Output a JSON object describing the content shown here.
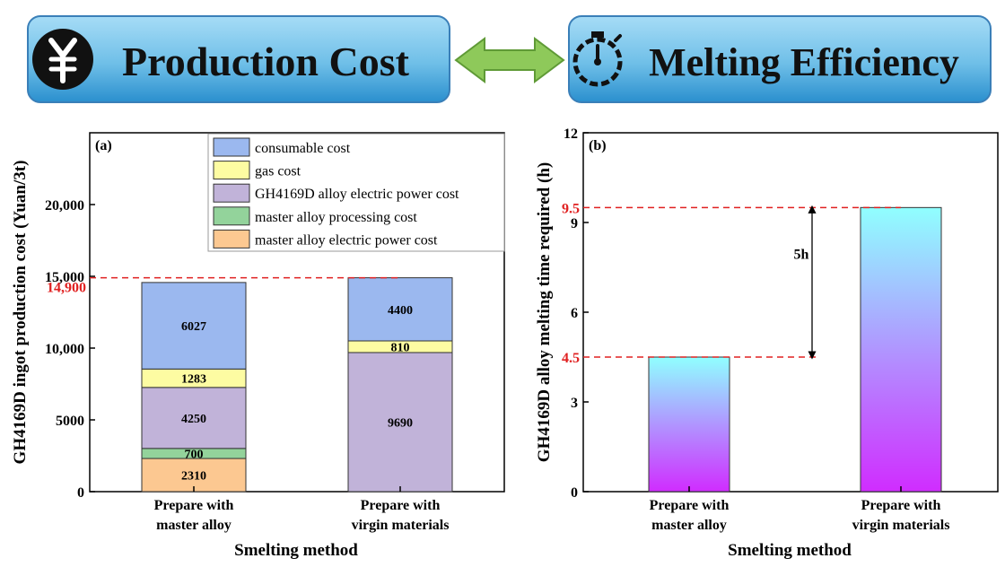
{
  "header": {
    "left_title": "Production Cost",
    "right_title": "Melting Efficiency",
    "yuan_icon": "yuan-coin-icon",
    "stopwatch_icon": "stopwatch-icon",
    "arrow_icon": "double-arrow-icon",
    "banner_colors": [
      "#8fd0f2",
      "#1f88c8"
    ],
    "arrow_color": "#8ec95a"
  },
  "chart_data": [
    {
      "type": "bar",
      "stacked": true,
      "panel_label": "(a)",
      "categories": [
        "Prepare with master alloy",
        "Prepare with virgin materials"
      ],
      "category_lines": [
        [
          "Prepare with",
          "master alloy"
        ],
        [
          "Prepare with",
          "virgin materials"
        ]
      ],
      "series": [
        {
          "name": "master alloy electric power cost",
          "color": "#fcc891",
          "values": [
            2310,
            0
          ]
        },
        {
          "name": "master alloy processing cost",
          "color": "#93d39b",
          "values": [
            700,
            0
          ]
        },
        {
          "name": "GH4169D alloy electric power cost",
          "color": "#c1b3d9",
          "values": [
            4250,
            9690
          ]
        },
        {
          "name": "gas cost",
          "color": "#fdfca2",
          "values": [
            1283,
            810
          ]
        },
        {
          "name": "consumable cost",
          "color": "#9bb8ef",
          "values": [
            6027,
            4400
          ]
        }
      ],
      "legend_order": [
        "consumable cost",
        "gas cost",
        "GH4169D alloy electric power cost",
        "master alloy processing cost",
        "master alloy electric power cost"
      ],
      "xlabel": "Smelting method",
      "ylabel": "GH4169D ingot production cost (Yuan/3t)",
      "ylim": [
        0,
        25000
      ],
      "yticks": [
        0,
        5000,
        10000,
        15000,
        20000
      ],
      "ytick_labels": [
        "0",
        "5000",
        "10,000",
        "15,000",
        "20,000"
      ],
      "reference_line": {
        "value": 14900,
        "label": "14,900",
        "color": "#e02020"
      },
      "legend_position": "top-right",
      "grid": false
    },
    {
      "type": "bar",
      "panel_label": "(b)",
      "categories": [
        "Prepare with master alloy",
        "Prepare with virgin materials"
      ],
      "category_lines": [
        [
          "Prepare with",
          "master alloy"
        ],
        [
          "Prepare with",
          "virgin materials"
        ]
      ],
      "values": [
        4.5,
        9.5
      ],
      "xlabel": "Smelting method",
      "ylabel": "GH4169D alloy melting time required (h)",
      "ylim": [
        0,
        12
      ],
      "yticks": [
        0,
        3,
        6,
        9,
        12
      ],
      "reference_lines": [
        {
          "value": 4.5,
          "label": "4.5",
          "color": "#e02020"
        },
        {
          "value": 9.5,
          "label": "9.5",
          "color": "#e02020"
        }
      ],
      "annotation": "5h",
      "gradient": [
        "#90ffff",
        "#d02cff"
      ],
      "grid": false
    }
  ]
}
